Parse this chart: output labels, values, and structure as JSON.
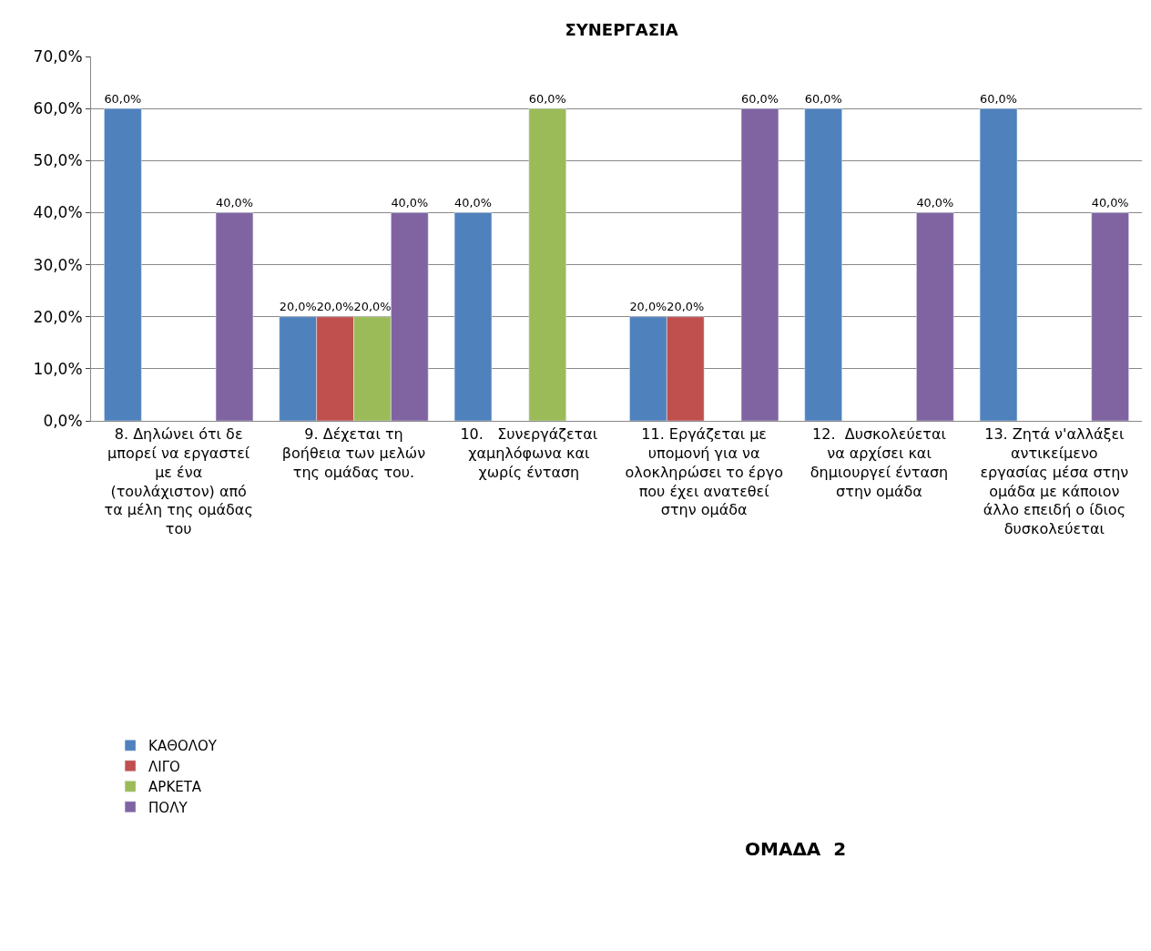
{
  "chart_data": {
    "type": "bar",
    "title": "ΣΥΝΕΡΓΑΣΙΑ",
    "categories": [
      "8. Δηλώνει ότι δε μπορεί να εργαστεί με ένα (τουλάχιστον) από τα μέλη της ομάδας του",
      "9. Δέχεται τη βοήθεια των μελών της ομάδας του.",
      "10.   Συνεργάζεται χαμηλόφωνα και χωρίς ένταση",
      "11. Εργάζεται με υπομονή για να ολοκληρώσει το έργο που έχει ανατεθεί στην ομάδα",
      "12.  Δυσκολεύεται να αρχίσει και δημιουργεί ένταση στην ομάδα",
      "13. Ζητά ν'αλλάξει αντικείμενο εργασίας μέσα στην ομάδα με κάποιον άλλο επειδή ο ίδιος δυσκολεύεται"
    ],
    "series": [
      {
        "name": "ΚΑΘΟΛΟΥ",
        "color": "#4f81bd",
        "values": [
          60,
          20,
          40,
          20,
          60,
          60
        ],
        "value_labels": [
          "60,0%",
          "20,0%",
          "40,0%",
          "20,0%",
          "60,0%",
          "60,0%"
        ]
      },
      {
        "name": "ΛΙΓΟ",
        "color": "#c0504d",
        "values": [
          null,
          20,
          null,
          20,
          null,
          null
        ],
        "value_labels": [
          null,
          "20,0%",
          null,
          "20,0%",
          null,
          null
        ]
      },
      {
        "name": "ΑΡΚΕΤΑ",
        "color": "#9bbb59",
        "values": [
          null,
          20,
          60,
          null,
          null,
          null
        ],
        "value_labels": [
          null,
          "20,0%",
          "60,0%",
          null,
          null,
          null
        ]
      },
      {
        "name": "ΠΟΛΥ",
        "color": "#8064a2",
        "values": [
          40,
          40,
          null,
          60,
          40,
          40
        ],
        "value_labels": [
          "40,0%",
          "40,0%",
          null,
          "60,0%",
          "40,0%",
          "40,0%"
        ]
      }
    ],
    "ylim": [
      0,
      70
    ],
    "yticks": [
      {
        "value": 0,
        "label": "0,0%"
      },
      {
        "value": 10,
        "label": "10,0%"
      },
      {
        "value": 20,
        "label": "20,0%"
      },
      {
        "value": 30,
        "label": "30,0%"
      },
      {
        "value": 40,
        "label": "40,0%"
      },
      {
        "value": 50,
        "label": "50,0%"
      },
      {
        "value": 60,
        "label": "60,0%"
      },
      {
        "value": 70,
        "label": "70,0%"
      }
    ],
    "grid": "y",
    "legend": "bottom left",
    "annotations": [
      "ΟΜΑΔΑ  2"
    ]
  }
}
